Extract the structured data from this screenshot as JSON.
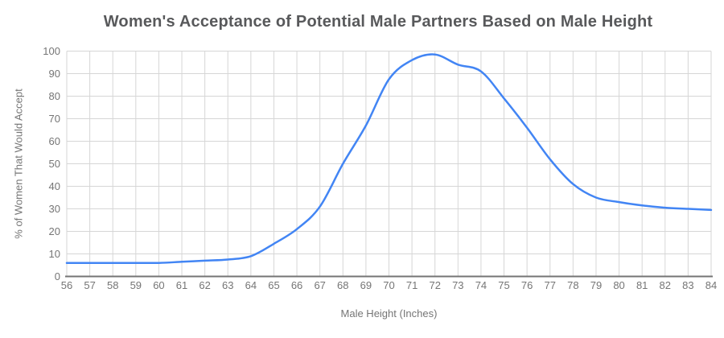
{
  "chart_data": {
    "type": "line",
    "title": "Women's Acceptance of Potential Male Partners Based on Male Height",
    "xlabel": "Male Height (Inches)",
    "ylabel": "% of Women That Would Accept",
    "series_name": "% of Women That Would Accept",
    "x": [
      56,
      57,
      58,
      59,
      60,
      61,
      62,
      63,
      64,
      65,
      66,
      67,
      68,
      69,
      70,
      71,
      72,
      73,
      74,
      75,
      76,
      77,
      78,
      79,
      80,
      81,
      82,
      83,
      84
    ],
    "values": [
      6,
      6,
      6,
      6,
      6,
      6.5,
      7,
      7.5,
      9,
      14.5,
      21,
      31,
      50,
      67,
      87.5,
      96,
      98.5,
      94,
      91,
      79,
      66,
      52,
      41,
      35,
      33,
      31.5,
      30.5,
      30,
      29.5
    ],
    "xlim": [
      56,
      84
    ],
    "ylim": [
      0,
      100
    ],
    "y_ticks": [
      0,
      10,
      20,
      30,
      40,
      50,
      60,
      70,
      80,
      90,
      100
    ],
    "grid": "both",
    "legend": "none",
    "smooth": true
  },
  "colors": {
    "line": "#4285f4",
    "title_text": "#58595b",
    "axis_labels": "#757575",
    "gridline": "#d6d6d6",
    "axis_line": "#757575",
    "background": "#ffffff"
  }
}
